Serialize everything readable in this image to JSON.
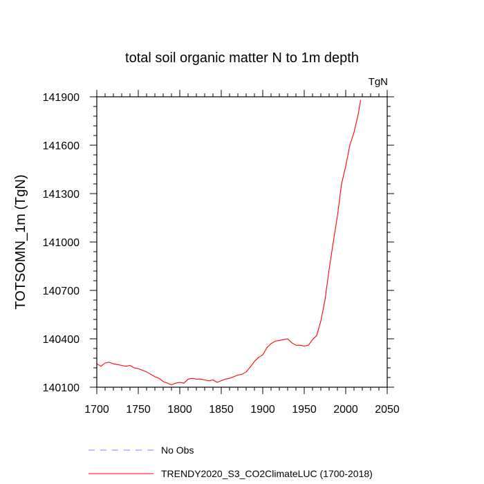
{
  "chart_data": {
    "type": "line",
    "title": "total soil organic matter N to 1m depth",
    "units_label": "TgN",
    "xlabel": "",
    "ylabel": "TOTSOMN_1m  (TgN)",
    "xlim": [
      1700,
      2050
    ],
    "ylim": [
      140100,
      141900
    ],
    "x_ticks": [
      1700,
      1750,
      1800,
      1850,
      1900,
      1950,
      2000,
      2050
    ],
    "y_ticks": [
      140100,
      140400,
      140700,
      141000,
      141300,
      141600,
      141900
    ],
    "x_minor_step": 10,
    "y_minor_step": 60,
    "grid": false,
    "legend": [
      {
        "label": "No Obs",
        "style": "dashed",
        "color": "#8080ff"
      },
      {
        "label": "TRENDY2020_S3_CO2ClimateLUC (1700-2018)",
        "style": "solid",
        "color": "#ff0000"
      }
    ],
    "series": [
      {
        "name": "TRENDY2020_S3_CO2ClimateLUC (1700-2018)",
        "color": "#ff0000",
        "x": [
          1700,
          1705,
          1710,
          1715,
          1720,
          1725,
          1730,
          1735,
          1740,
          1745,
          1750,
          1755,
          1760,
          1765,
          1770,
          1775,
          1780,
          1785,
          1790,
          1795,
          1800,
          1805,
          1810,
          1815,
          1820,
          1825,
          1830,
          1835,
          1840,
          1845,
          1850,
          1855,
          1860,
          1865,
          1870,
          1875,
          1880,
          1885,
          1890,
          1895,
          1900,
          1905,
          1910,
          1915,
          1920,
          1925,
          1930,
          1935,
          1940,
          1945,
          1950,
          1955,
          1960,
          1965,
          1970,
          1975,
          1980,
          1985,
          1990,
          1995,
          2000,
          2005,
          2010,
          2015,
          2018
        ],
        "y": [
          140245,
          140230,
          140250,
          140255,
          140245,
          140240,
          140235,
          140230,
          140235,
          140220,
          140215,
          140205,
          140195,
          140180,
          140165,
          140155,
          140135,
          140125,
          140115,
          140125,
          140130,
          140125,
          140150,
          140155,
          140150,
          140150,
          140145,
          140140,
          140145,
          140130,
          140140,
          140150,
          140155,
          140165,
          140175,
          140180,
          140195,
          140225,
          140260,
          140285,
          140300,
          140345,
          140370,
          140385,
          140390,
          140395,
          140400,
          140375,
          140360,
          140360,
          140355,
          140360,
          140395,
          140420,
          140510,
          140640,
          140830,
          141000,
          141160,
          141360,
          141470,
          141600,
          141680,
          141790,
          141880
        ]
      }
    ]
  }
}
